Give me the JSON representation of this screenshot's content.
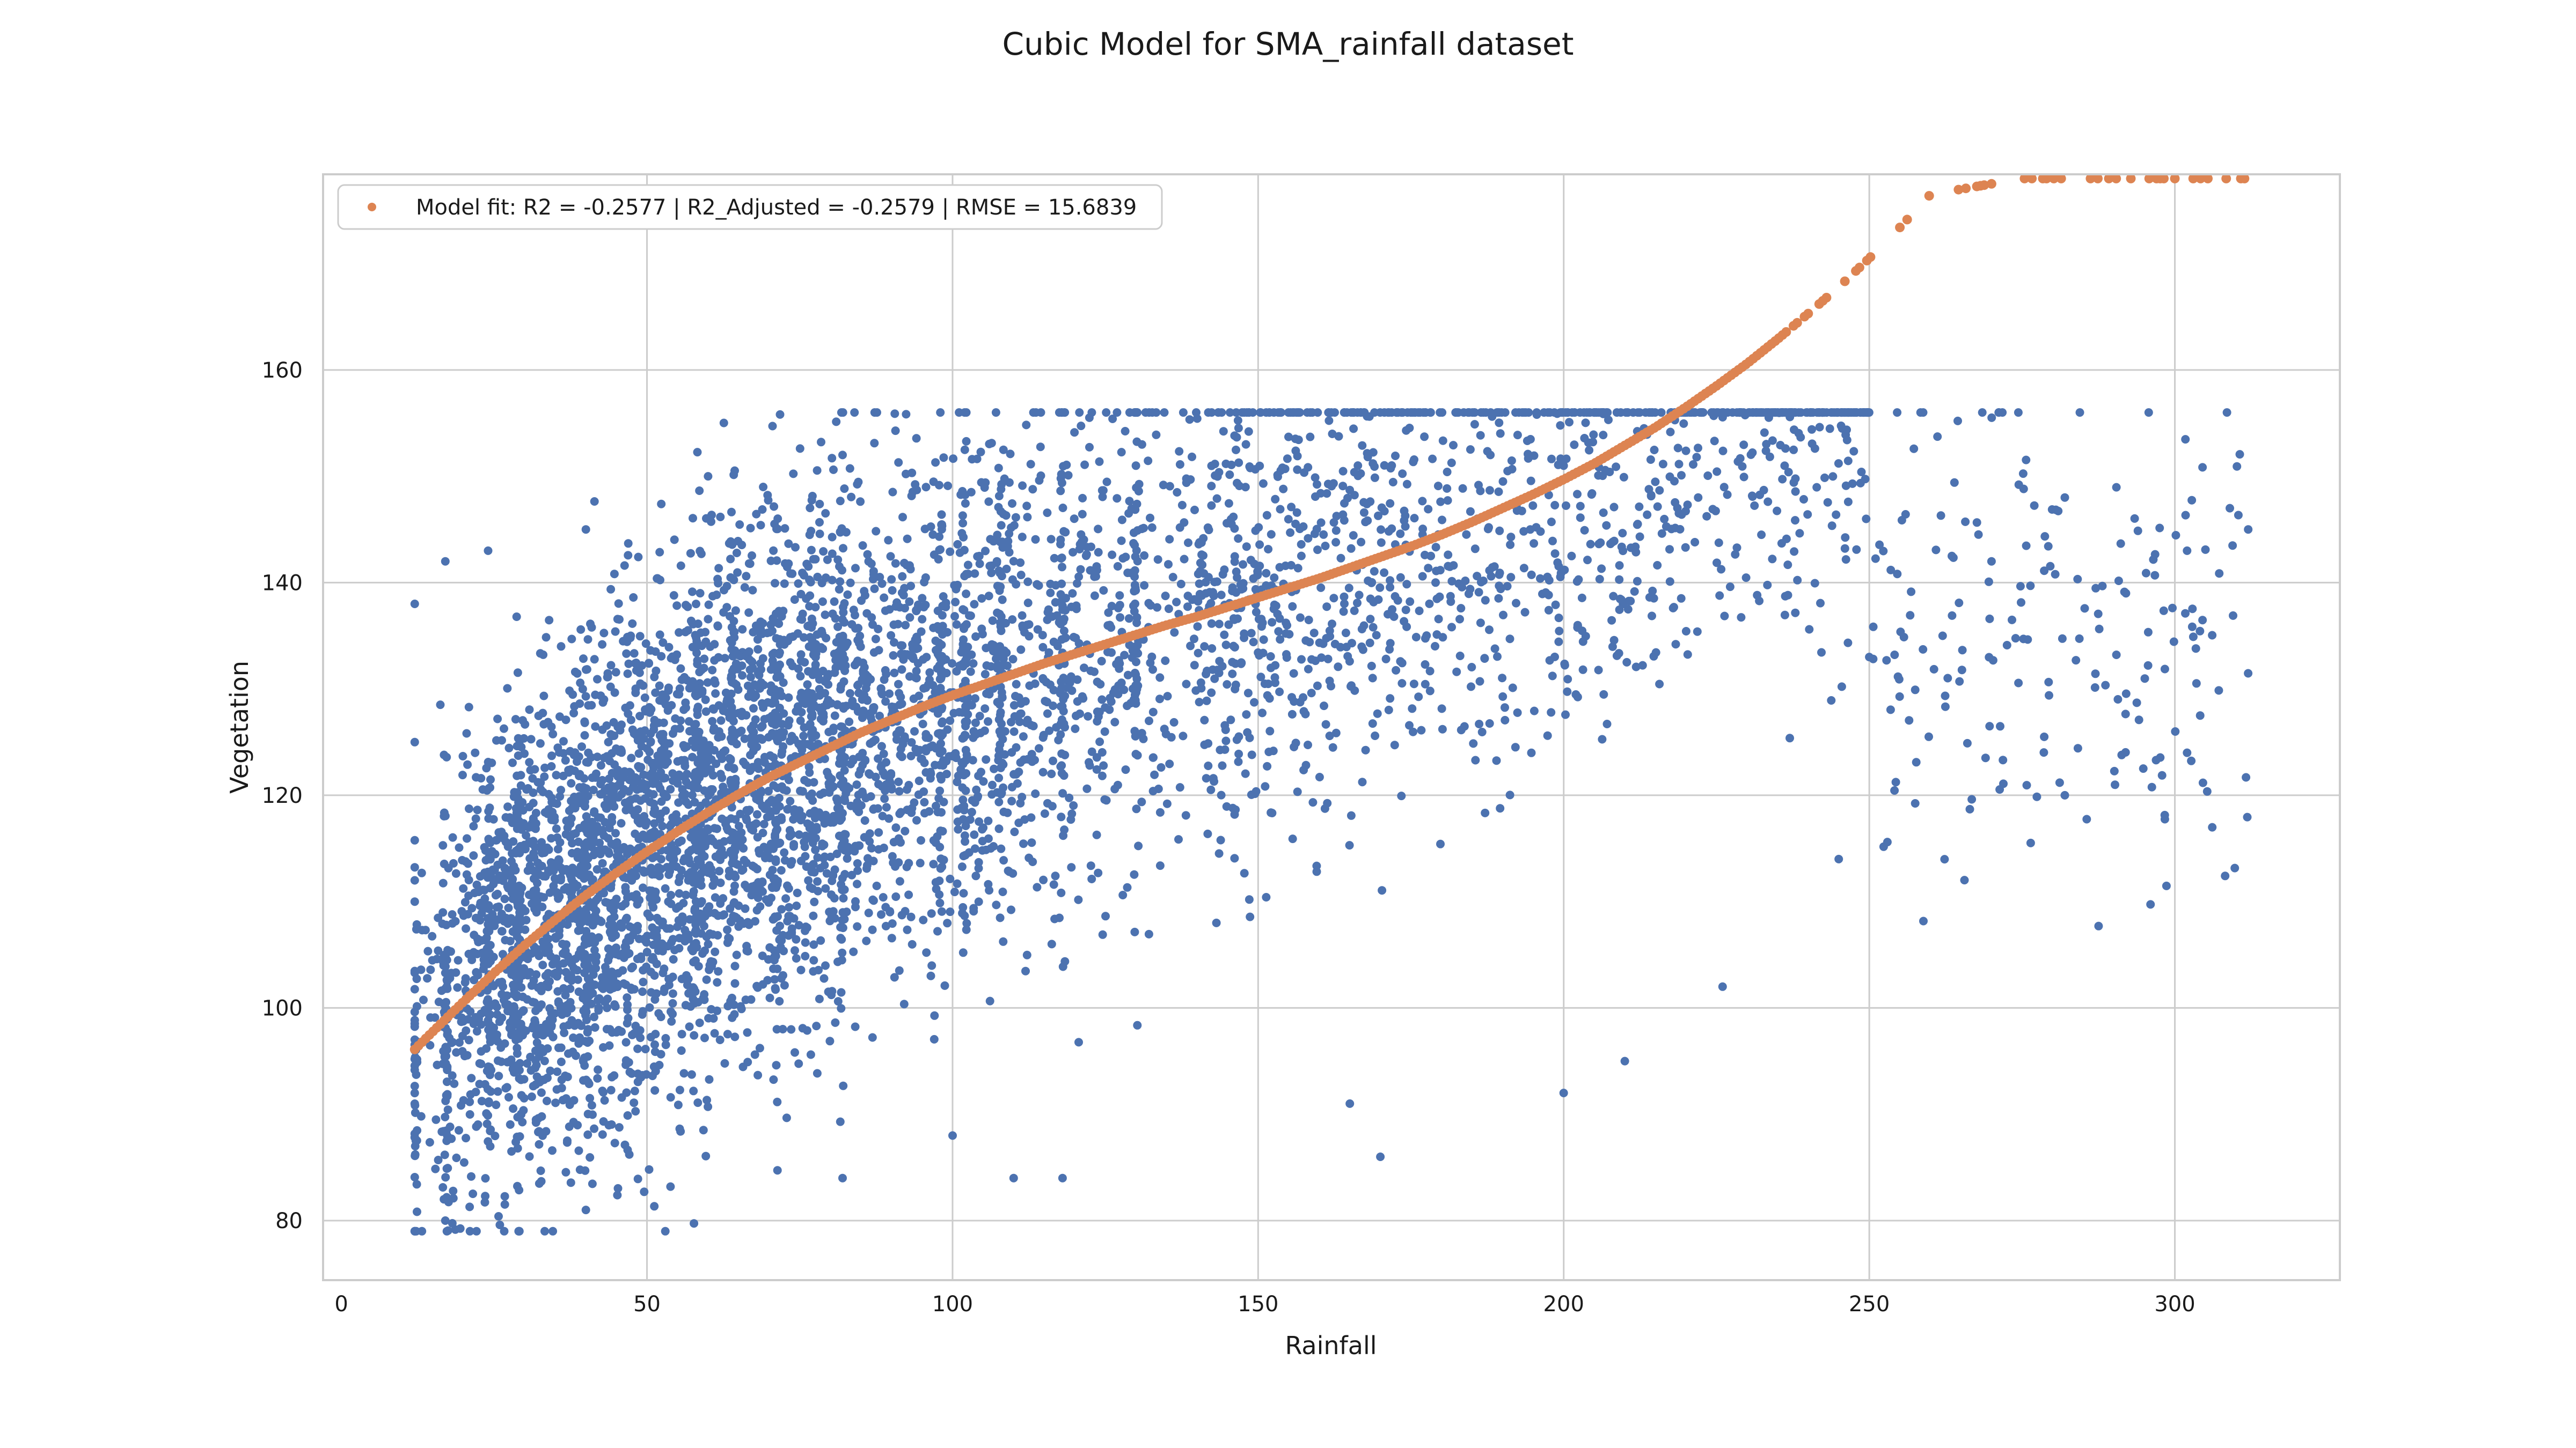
{
  "chart_data": {
    "type": "scatter",
    "title": "Cubic Model for SMA_rainfall dataset",
    "xlabel": "Rainfall",
    "ylabel": "Vegetation",
    "xlim": [
      -3,
      327
    ],
    "ylim": [
      74.4,
      178.4
    ],
    "xticks": [
      0,
      50,
      100,
      150,
      200,
      250,
      300
    ],
    "yticks": [
      80,
      100,
      120,
      140,
      160
    ],
    "grid": true,
    "legend_position": "top-left",
    "colors": {
      "observed": "#4c72b0",
      "fit": "#dd8452"
    },
    "series": [
      {
        "name": "Model fit: R2 = -0.2577 | R2_Adjusted = -0.2579 | RMSE = 15.6839",
        "role": "fit",
        "model": "cubic",
        "x": [
          12,
          15,
          20,
          25,
          30,
          35,
          40,
          45,
          50,
          55,
          60,
          65,
          70,
          75,
          80,
          85,
          90,
          95,
          100,
          105,
          110,
          115,
          120,
          125,
          130,
          135,
          140,
          145,
          150,
          155,
          160,
          165,
          170,
          175,
          180,
          185,
          190,
          195,
          200,
          205,
          210,
          215,
          220,
          225,
          230,
          235,
          240,
          245,
          250,
          255,
          260,
          265,
          270,
          275,
          280,
          285,
          290,
          295,
          300,
          305,
          310,
          312
        ],
        "y": [
          96.1,
          97.8,
          100.6,
          103.3,
          105.9,
          108.3,
          110.6,
          112.7,
          114.7,
          116.6,
          118.4,
          120.1,
          121.7,
          123.1,
          124.5,
          125.9,
          127.1,
          128.3,
          129.4,
          130.4,
          131.4,
          132.4,
          133.3,
          134.2,
          135.1,
          136.0,
          136.8,
          137.7,
          138.6,
          139.5,
          140.4,
          141.4,
          142.4,
          143.4,
          144.5,
          145.7,
          147.0,
          148.3,
          149.7,
          151.2,
          152.9,
          154.6,
          156.5,
          158.5,
          160.6,
          162.9,
          165.3,
          167.8,
          170.5,
          173.4,
          176.5,
          177.0,
          177.5,
          178.0,
          178.0,
          178.0,
          178.0,
          178.0,
          178.0,
          178.0,
          178.0,
          178.0
        ]
      },
      {
        "name": "",
        "role": "observed",
        "point_count_approx": 6000,
        "x_range": [
          12,
          312
        ],
        "y_range": [
          79,
          156
        ],
        "sample_points": [
          [
            12,
            96
          ],
          [
            12,
            110
          ],
          [
            12,
            125
          ],
          [
            12,
            138
          ],
          [
            17,
            80
          ],
          [
            17,
            142
          ],
          [
            24,
            143
          ],
          [
            29,
            79
          ],
          [
            40,
            81
          ],
          [
            40,
            145
          ],
          [
            53,
            79
          ],
          [
            60,
            150
          ],
          [
            82,
            84
          ],
          [
            82,
            152
          ],
          [
            98,
            156
          ],
          [
            100,
            88
          ],
          [
            110,
            84
          ],
          [
            118,
            84
          ],
          [
            130,
            151
          ],
          [
            148,
            153
          ],
          [
            165,
            91
          ],
          [
            170,
            86
          ],
          [
            188,
            152
          ],
          [
            200,
            92
          ],
          [
            200,
            151
          ],
          [
            210,
            95
          ],
          [
            222,
            148
          ],
          [
            226,
            102
          ],
          [
            245,
            114
          ],
          [
            250,
            133
          ],
          [
            262,
            135
          ],
          [
            270,
            142
          ],
          [
            282,
            148
          ],
          [
            282,
            120
          ],
          [
            292,
            139
          ],
          [
            302,
            124
          ],
          [
            302,
            143
          ],
          [
            309,
            147
          ],
          [
            312,
            145
          ]
        ]
      }
    ]
  }
}
